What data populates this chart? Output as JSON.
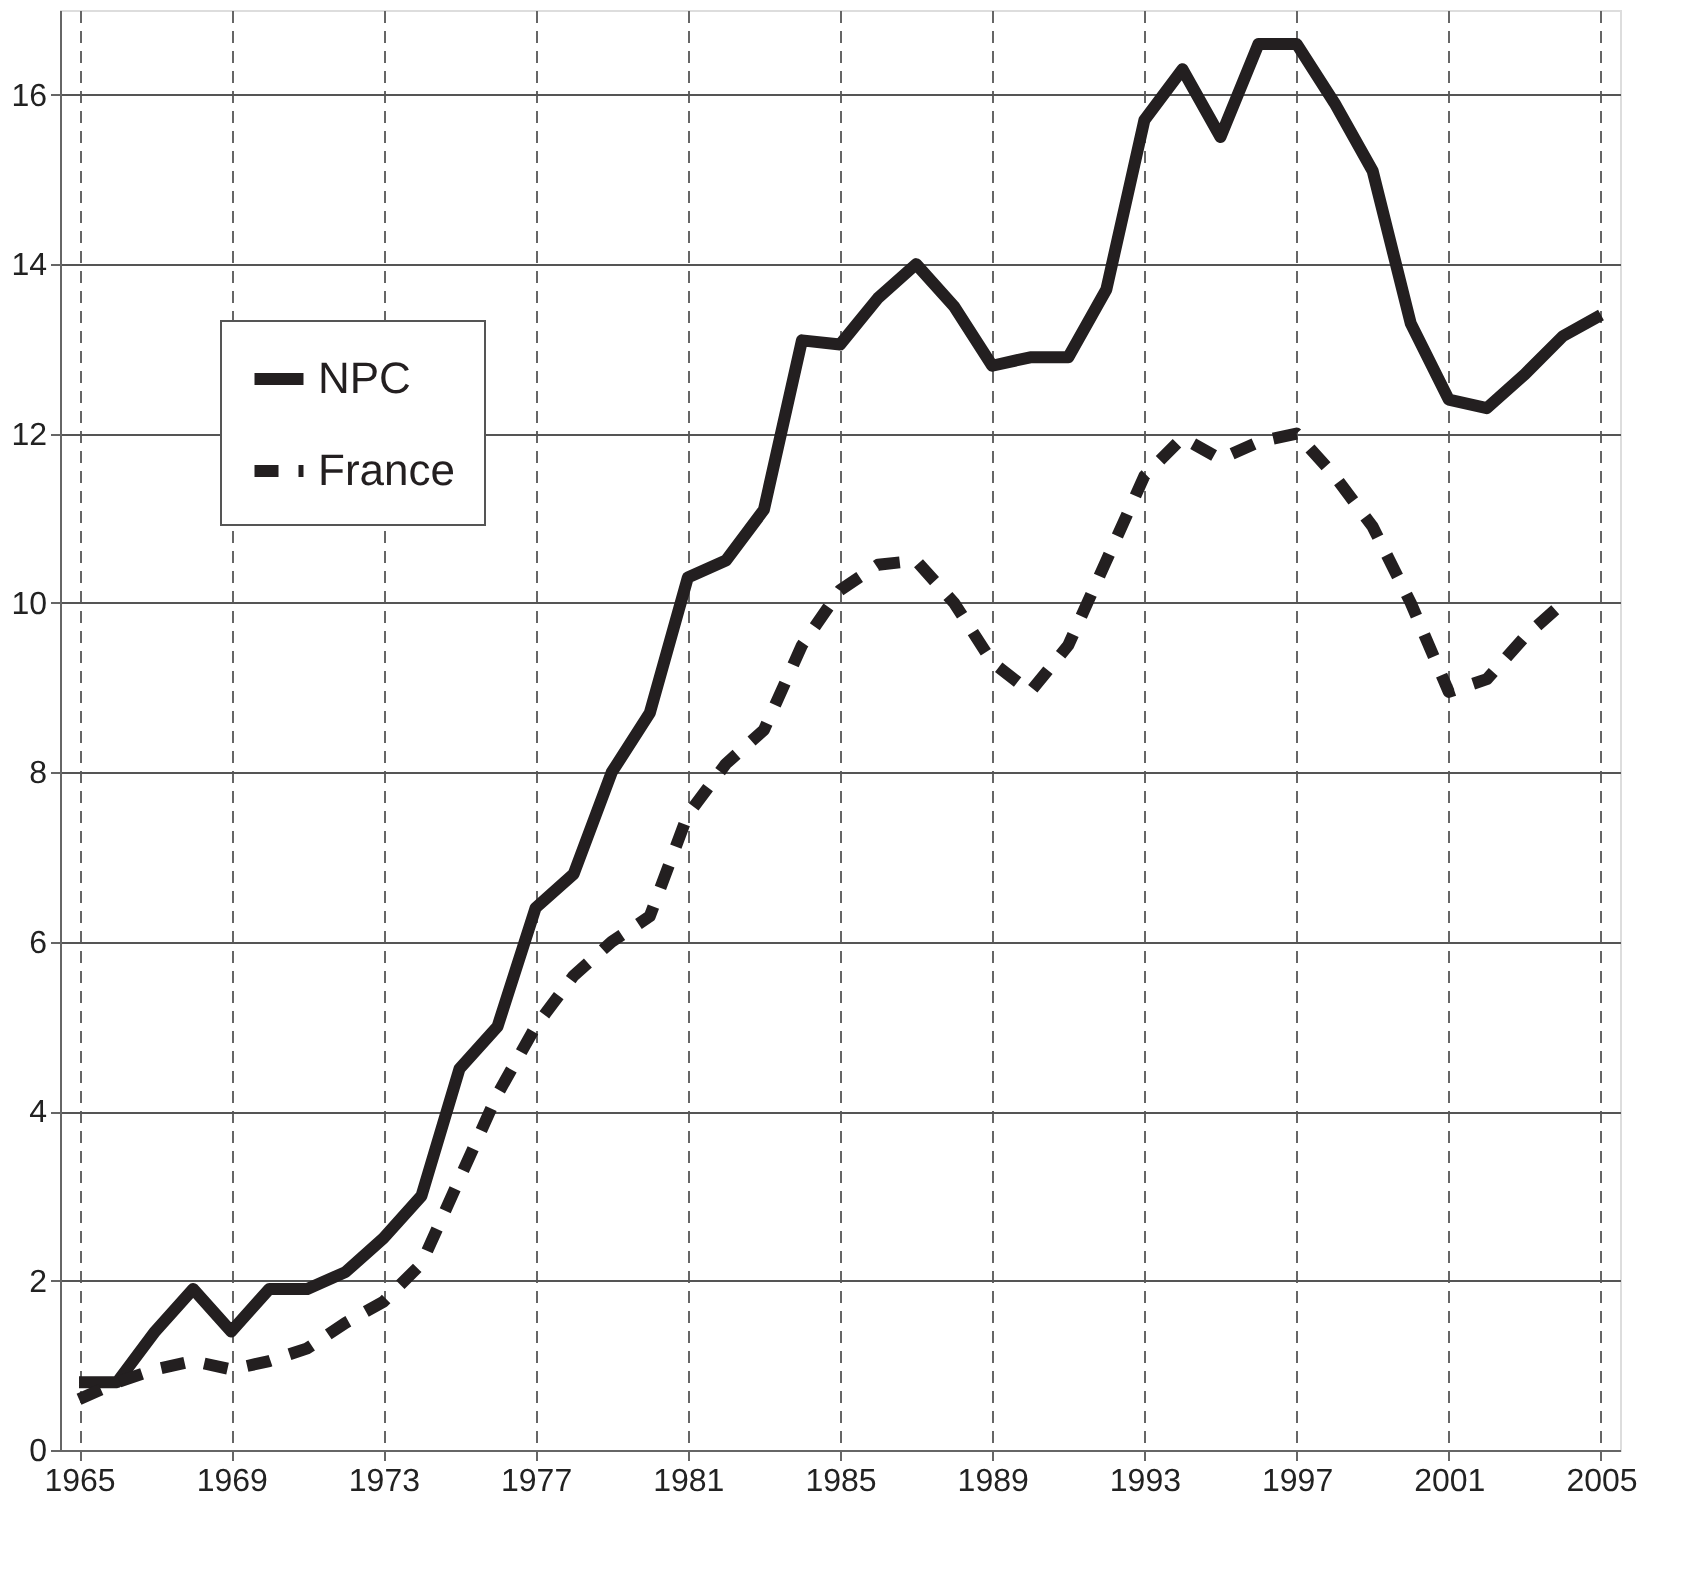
{
  "chart_data": {
    "type": "line",
    "x": [
      1965,
      1966,
      1967,
      1968,
      1969,
      1970,
      1971,
      1972,
      1973,
      1974,
      1975,
      1976,
      1977,
      1978,
      1979,
      1980,
      1981,
      1982,
      1983,
      1984,
      1985,
      1986,
      1987,
      1988,
      1989,
      1990,
      1991,
      1992,
      1993,
      1994,
      1995,
      1996,
      1997,
      1998,
      1999,
      2000,
      2001,
      2002,
      2003,
      2004,
      2005
    ],
    "series": [
      {
        "name": "NPC",
        "color": "#231f20",
        "line_style": "solid",
        "values": [
          0.8,
          0.8,
          1.4,
          1.9,
          1.4,
          1.9,
          1.9,
          2.1,
          2.5,
          3.0,
          4.5,
          5.0,
          6.4,
          6.8,
          8.0,
          8.7,
          10.3,
          10.5,
          11.1,
          13.1,
          13.05,
          13.6,
          14.0,
          13.5,
          12.8,
          12.9,
          12.9,
          13.7,
          15.7,
          16.3,
          15.5,
          16.6,
          16.6,
          15.9,
          15.1,
          13.3,
          12.4,
          12.3,
          12.7,
          13.15,
          13.4
        ]
      },
      {
        "name": "France",
        "color": "#231f20",
        "line_style": "dashed",
        "values": [
          0.6,
          0.8,
          0.95,
          1.05,
          0.95,
          1.05,
          1.2,
          1.5,
          1.75,
          2.2,
          3.2,
          4.2,
          5.0,
          5.6,
          6.0,
          6.3,
          7.5,
          8.1,
          8.5,
          9.5,
          10.15,
          10.45,
          10.5,
          10.0,
          9.3,
          8.95,
          9.5,
          10.5,
          11.5,
          11.95,
          11.7,
          11.9,
          12.0,
          11.5,
          10.9,
          10.0,
          8.95,
          9.1,
          9.6,
          10.0,
          null
        ]
      }
    ],
    "xlim": [
      1964.5,
      2005.5
    ],
    "xticks": [
      1965,
      1969,
      1973,
      1977,
      1981,
      1985,
      1989,
      1993,
      1997,
      2001,
      2005
    ],
    "ylim": [
      0,
      17
    ],
    "yticks": [
      0,
      2,
      4,
      6,
      8,
      10,
      12,
      14,
      16
    ],
    "grid": true,
    "legend": "top left",
    "marker": "none"
  }
}
